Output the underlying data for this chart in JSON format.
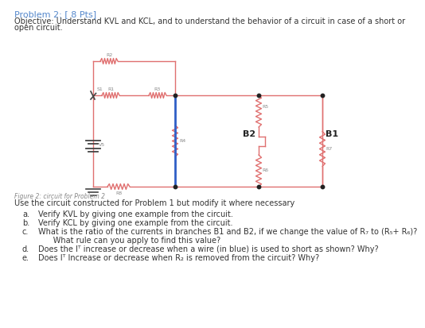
{
  "title": "Problem 2: [ 8 Pts]",
  "objective_line1": "Objective: Understand KVL and KCL, and to understand the behavior of a circuit in case of a short or",
  "objective_line2": "open circuit.",
  "figure_caption": "Figure 2: circuit for Problem 2",
  "instructions": "Use the circuit constructed for Problem 1 but modify it where necessary",
  "circuit_color": "#e07070",
  "blue_wire_color": "#3060c8",
  "title_color": "#5588cc",
  "text_color": "#333333",
  "bg_color": "#ffffff",
  "resistor_label_color": "#888888",
  "items": [
    [
      "a.",
      "Verify KVL by giving one example from the circuit."
    ],
    [
      "b.",
      "Verify KCL by giving one example from the circuit."
    ],
    [
      "c.",
      "What is the ratio of the currents in branches B1 and B2, if we change the value of R₇ to (R₅+ R₆)?"
    ],
    [
      "",
      "      What rule can you apply to find this value?"
    ],
    [
      "d.",
      "Does the Iᵀ increase or decrease when a wire (in blue) is used to short as shown? Why?"
    ],
    [
      "e.",
      "Does Iᵀ Increase or decrease when R₂ is removed from the circuit? Why?"
    ]
  ]
}
